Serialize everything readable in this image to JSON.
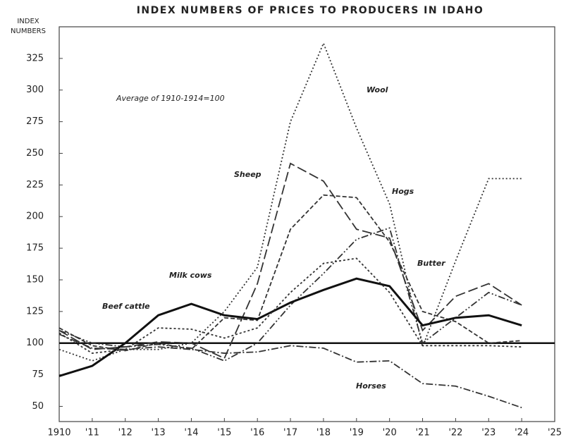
{
  "chart_data": {
    "type": "line",
    "title": "INDEX NUMBERS OF PRICES TO PRODUCERS IN IDAHO",
    "ylabel": [
      "INDEX",
      "NUMBERS"
    ],
    "annotation": "Average of 1910-1914=100",
    "x": [
      1910,
      1911,
      1912,
      1913,
      1914,
      1915,
      1916,
      1917,
      1918,
      1919,
      1920,
      1921,
      1922,
      1923,
      1924
    ],
    "xlim": [
      1910,
      1925
    ],
    "xticks": [
      1910,
      {
        "value": 1911,
        "label": "'11"
      },
      {
        "value": 1912,
        "label": "'12"
      },
      {
        "value": 1913,
        "label": "'13"
      },
      {
        "value": 1914,
        "label": "'14"
      },
      {
        "value": 1915,
        "label": "'15"
      },
      {
        "value": 1916,
        "label": "'16"
      },
      {
        "value": 1917,
        "label": "'17"
      },
      {
        "value": 1918,
        "label": "'18"
      },
      {
        "value": 1919,
        "label": "'19"
      },
      {
        "value": 1920,
        "label": "'20"
      },
      {
        "value": 1921,
        "label": "'21"
      },
      {
        "value": 1922,
        "label": "'22"
      },
      {
        "value": 1923,
        "label": "'23"
      },
      {
        "value": 1924,
        "label": "'24"
      },
      {
        "value": 1925,
        "label": "'25"
      }
    ],
    "ylim": [
      38,
      350
    ],
    "yticks": [
      50,
      75,
      100,
      125,
      150,
      175,
      200,
      225,
      250,
      275,
      300,
      325
    ],
    "reference_line": 100,
    "series": [
      {
        "name": "Wool",
        "color": "#333",
        "dash": "2 3",
        "values": [
          95,
          86,
          95,
          95,
          100,
          125,
          160,
          275,
          337,
          270,
          210,
          97,
          165,
          230,
          230
        ]
      },
      {
        "name": "Sheep",
        "color": "#333",
        "dash": "14 5",
        "values": [
          110,
          95,
          97,
          101,
          100,
          88,
          147,
          242,
          228,
          190,
          183,
          110,
          137,
          147,
          130
        ]
      },
      {
        "name": "Hogs",
        "color": "#333",
        "dash": "6 3",
        "values": [
          112,
          98,
          94,
          100,
          95,
          120,
          118,
          190,
          217,
          215,
          180,
          125,
          117,
          100,
          102
        ]
      },
      {
        "name": "Butter",
        "color": "#333",
        "dash": "10 3 2 3 2 3",
        "values": [
          110,
          100,
          97,
          99,
          96,
          86,
          100,
          130,
          155,
          182,
          191,
          100,
          120,
          140,
          130
        ]
      },
      {
        "name": "Milk cows",
        "color": "#111",
        "dash": "none",
        "width": 3,
        "values": [
          74,
          82,
          100,
          122,
          131,
          122,
          119,
          132,
          142,
          151,
          145,
          114,
          120,
          122,
          114
        ]
      },
      {
        "name": "Beef cattle",
        "color": "#333",
        "dash": "3 3",
        "values": [
          108,
          92,
          95,
          112,
          111,
          104,
          112,
          140,
          163,
          167,
          140,
          98,
          98,
          98,
          97
        ]
      },
      {
        "name": "Horses",
        "color": "#333",
        "dash": "10 3 2 3",
        "values": [
          107,
          96,
          95,
          97,
          95,
          92,
          93,
          98,
          96,
          85,
          86,
          68,
          66,
          58,
          49
        ]
      }
    ]
  }
}
